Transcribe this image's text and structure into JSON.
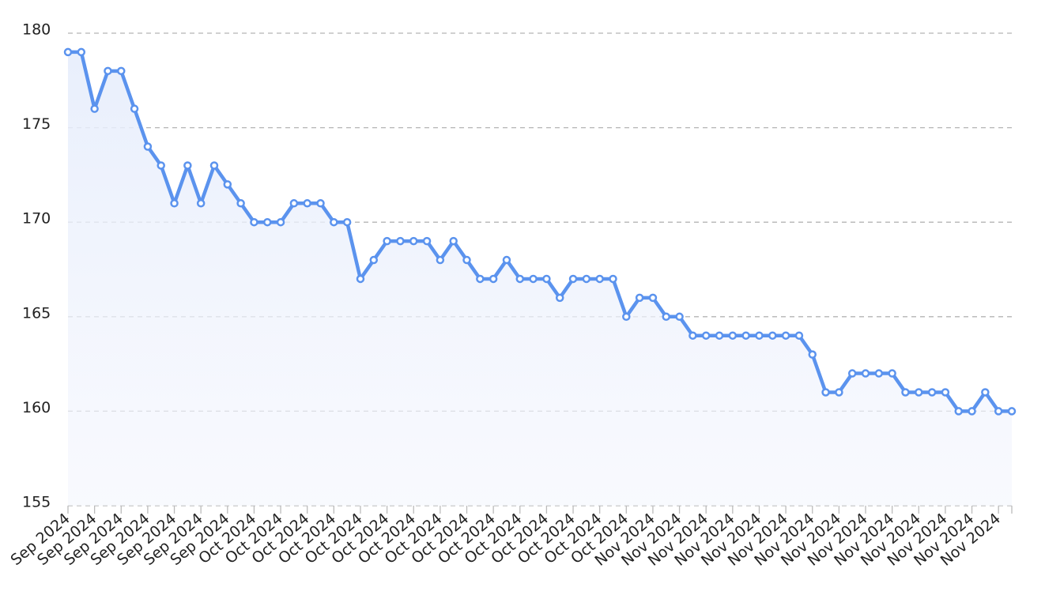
{
  "chart_data": {
    "type": "line",
    "categories": [
      "Sep 2024",
      null,
      "Sep 2024",
      null,
      "Sep 2024",
      null,
      "Sep 2024",
      null,
      "Sep 2024",
      null,
      "Sep 2024",
      null,
      "Sep 2024",
      null,
      "Oct 2024",
      null,
      "Oct 2024",
      null,
      "Oct 2024",
      null,
      "Oct 2024",
      null,
      "Oct 2024",
      null,
      "Oct 2024",
      null,
      "Oct 2024",
      null,
      "Oct 2024",
      null,
      "Oct 2024",
      null,
      "Oct 2024",
      null,
      "Oct 2024",
      null,
      "Oct 2024",
      null,
      "Oct 2024",
      null,
      "Oct 2024",
      null,
      "Oct 2024",
      null,
      "Nov 2024",
      null,
      "Nov 2024",
      null,
      "Nov 2024",
      null,
      "Nov 2024",
      null,
      "Nov 2024",
      null,
      "Nov 2024",
      null,
      "Nov 2024",
      null,
      "Nov 2024",
      null,
      "Nov 2024",
      null,
      "Nov 2024",
      null,
      "Nov 2024",
      null,
      "Nov 2024",
      null,
      "Nov 2024",
      null,
      "Nov 2024",
      null
    ],
    "values": [
      179,
      179,
      176,
      178,
      178,
      176,
      174,
      173,
      171,
      173,
      171,
      173,
      172,
      171,
      170,
      170,
      170,
      171,
      171,
      171,
      170,
      170,
      167,
      168,
      169,
      169,
      169,
      169,
      168,
      169,
      168,
      167,
      167,
      168,
      167,
      167,
      167,
      166,
      167,
      167,
      167,
      167,
      165,
      166,
      166,
      165,
      165,
      164,
      164,
      164,
      164,
      164,
      164,
      164,
      164,
      164,
      163,
      161,
      161,
      162,
      162,
      162,
      162,
      161,
      161,
      161,
      161,
      160,
      160,
      161,
      160,
      160
    ],
    "color": "#5b93ee",
    "ylim": [
      155,
      180
    ],
    "yticks": [
      155,
      160,
      165,
      170,
      175,
      180
    ],
    "grid": true
  }
}
